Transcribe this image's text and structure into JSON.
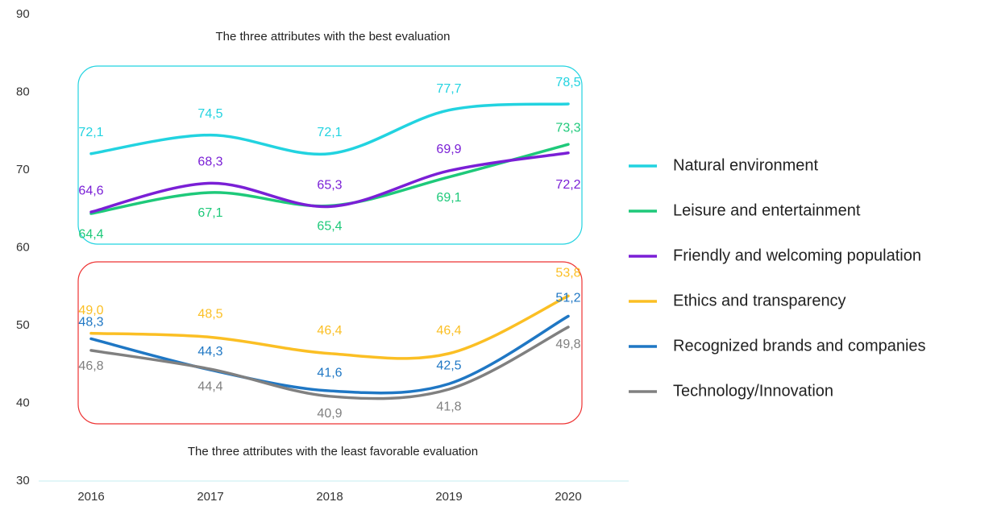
{
  "chart_data": {
    "type": "line",
    "annotations": [
      "The three attributes with the best evaluation",
      "The three attributes with the least favorable evaluation"
    ],
    "categories": [
      "2016",
      "2017",
      "2018",
      "2019",
      "2020"
    ],
    "series": [
      {
        "name": "Natural environment",
        "color": "#22d3e0",
        "values": [
          72.1,
          74.5,
          72.1,
          77.7,
          78.5
        ],
        "value_labels": [
          "72,1",
          "74,5",
          "72,1",
          "77,7",
          "78,5"
        ]
      },
      {
        "name": "Leisure and entertainment",
        "color": "#1ec97a",
        "values": [
          64.4,
          67.1,
          65.4,
          69.1,
          73.3
        ],
        "value_labels": [
          "64,4",
          "67,1",
          "65,4",
          "69,1",
          "73,3"
        ]
      },
      {
        "name": "Friendly and welcoming population",
        "color": "#7a1fd6",
        "values": [
          64.6,
          68.3,
          65.3,
          69.9,
          72.2
        ],
        "value_labels": [
          "64,6",
          "68,3",
          "65,3",
          "69,9",
          "72,2"
        ]
      },
      {
        "name": "Ethics and transparency",
        "color": "#fbbf24",
        "values": [
          49.0,
          48.5,
          46.4,
          46.4,
          53.8
        ],
        "value_labels": [
          "49,0",
          "48,5",
          "46,4",
          "46,4",
          "53,8"
        ]
      },
      {
        "name": "Recognized brands and companies",
        "color": "#1f77c4",
        "values": [
          48.3,
          44.3,
          41.6,
          42.5,
          51.2
        ],
        "value_labels": [
          "48,3",
          "44,3",
          "41,6",
          "42,5",
          "51,2"
        ]
      },
      {
        "name": "Technology/Innovation",
        "color": "#808080",
        "values": [
          46.8,
          44.4,
          40.9,
          41.8,
          49.8
        ],
        "value_labels": [
          "46,8",
          "44,4",
          "40,9",
          "41,8",
          "49,8"
        ]
      }
    ],
    "ylim": [
      30,
      90
    ],
    "yticks": [
      30,
      40,
      50,
      60,
      70,
      80,
      90
    ],
    "grid": false,
    "legend": "right"
  }
}
